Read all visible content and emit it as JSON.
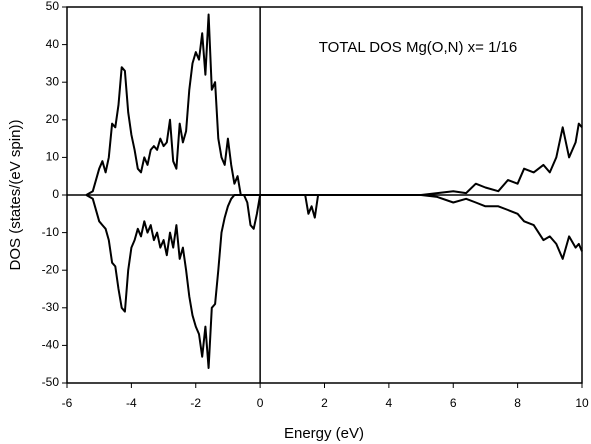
{
  "chart_data": {
    "type": "line",
    "annotation": "TOTAL DOS Mg(O,N) x= 1/16",
    "x_label": "Energy (eV)",
    "y_label": "DOS (states/(eV spin))",
    "x": [
      -5.4,
      -5.2,
      -5.0,
      -4.9,
      -4.8,
      -4.7,
      -4.6,
      -4.5,
      -4.4,
      -4.3,
      -4.2,
      -4.1,
      -4.0,
      -3.9,
      -3.8,
      -3.7,
      -3.6,
      -3.5,
      -3.4,
      -3.3,
      -3.2,
      -3.1,
      -3.0,
      -2.9,
      -2.8,
      -2.7,
      -2.6,
      -2.5,
      -2.4,
      -2.3,
      -2.2,
      -2.1,
      -2.0,
      -1.9,
      -1.8,
      -1.7,
      -1.6,
      -1.5,
      -1.4,
      -1.3,
      -1.2,
      -1.1,
      -1.0,
      -0.9,
      -0.8,
      -0.7,
      -0.6,
      -0.5,
      -0.4,
      -0.3,
      -0.2,
      -0.1,
      0,
      1.4,
      1.5,
      1.6,
      1.7,
      1.8,
      5.0,
      5.5,
      6.0,
      6.4,
      6.7,
      7.0,
      7.4,
      7.7,
      8.0,
      8.2,
      8.5,
      8.8,
      9.0,
      9.2,
      9.4,
      9.6,
      9.8,
      9.9,
      10
    ],
    "series": [
      {
        "color": "#000000",
        "values": [
          0,
          1,
          7,
          9,
          6,
          10,
          19,
          18,
          24,
          34,
          33,
          22,
          16,
          12,
          7,
          6,
          10,
          8,
          12,
          13,
          12,
          15,
          13,
          14,
          20,
          9,
          7,
          19,
          14,
          17,
          28,
          35,
          38,
          36,
          43,
          32,
          48,
          28,
          30,
          15,
          10,
          8,
          15,
          8,
          3,
          5,
          0,
          0,
          0,
          0,
          0,
          0,
          0,
          0,
          0,
          0,
          0,
          0,
          0,
          0.5,
          1,
          0.5,
          3,
          2,
          1,
          4,
          3,
          7,
          6,
          8,
          6,
          10,
          18,
          10,
          14,
          19,
          18
        ]
      },
      {
        "color": "#000000",
        "values": [
          0,
          -1,
          -7,
          -8,
          -9,
          -12,
          -18,
          -19,
          -25,
          -30,
          -31,
          -20,
          -14,
          -12,
          -9,
          -11,
          -7,
          -10,
          -8,
          -12,
          -10,
          -14,
          -12,
          -16,
          -10,
          -14,
          -8,
          -17,
          -14,
          -20,
          -27,
          -32,
          -35,
          -37,
          -43,
          -35,
          -46,
          -30,
          -29,
          -20,
          -10,
          -6,
          -3,
          -1,
          0,
          0,
          0,
          0,
          -2,
          -8,
          -9,
          -5,
          0,
          0,
          -5,
          -3,
          -6,
          0,
          0,
          -0.5,
          -2,
          -1,
          -2,
          -3,
          -3,
          -4,
          -5,
          -7,
          -8,
          -12,
          -11,
          -13,
          -17,
          -11,
          -14,
          -13,
          -15
        ]
      }
    ],
    "xlim": [
      -6,
      10
    ],
    "ylim": [
      -50,
      50
    ],
    "xticks": [
      -6,
      -4,
      -2,
      0,
      2,
      4,
      6,
      8,
      10
    ],
    "yticks": [
      -50,
      -40,
      -30,
      -20,
      -10,
      0,
      10,
      20,
      30,
      40,
      50
    ]
  }
}
